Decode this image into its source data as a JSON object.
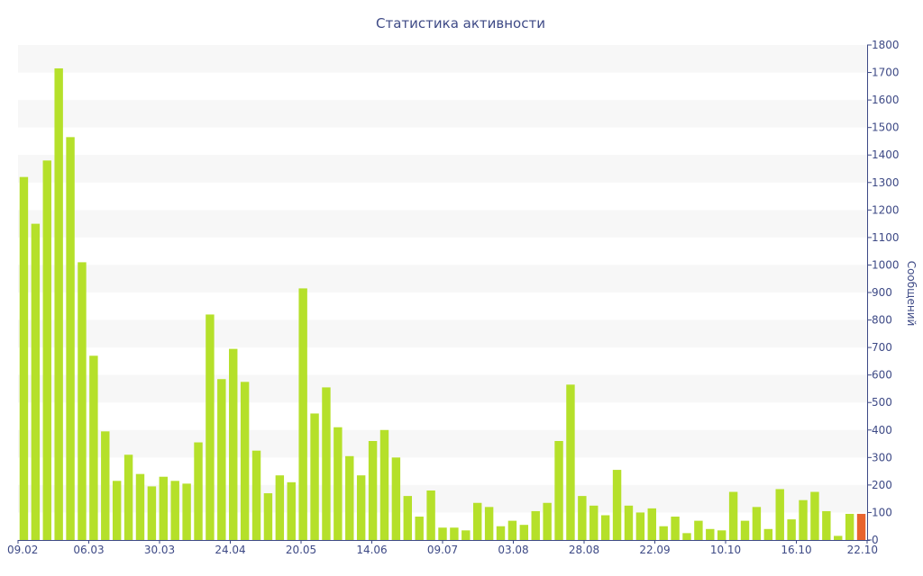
{
  "chart_data": {
    "type": "bar",
    "title": "Статистика активности",
    "xlabel": "",
    "ylabel": "Сообщений",
    "ylim": [
      0,
      1800
    ],
    "y_ticks": [
      0,
      100,
      200,
      300,
      400,
      500,
      600,
      700,
      800,
      900,
      1000,
      1100,
      1200,
      1300,
      1400,
      1500,
      1600,
      1700,
      1800
    ],
    "y_axis_side": "right",
    "x_tick_labels": [
      "09.02",
      "06.03",
      "30.03",
      "24.04",
      "20.05",
      "14.06",
      "09.07",
      "03.08",
      "28.08",
      "22.09",
      "10.10",
      "16.10",
      "22.10"
    ],
    "grid": "alternating horizontal bands",
    "colors": {
      "bar": "#b5e02a",
      "highlight": "#e8642e",
      "text": "#3e4a86",
      "band": "#f7f7f7"
    },
    "values": [
      1320,
      1150,
      1380,
      1715,
      1465,
      1010,
      670,
      395,
      215,
      310,
      240,
      195,
      230,
      215,
      205,
      355,
      820,
      585,
      695,
      575,
      325,
      170,
      235,
      210,
      915,
      460,
      555,
      410,
      305,
      235,
      360,
      400,
      300,
      160,
      85,
      180,
      45,
      45,
      35,
      135,
      120,
      50,
      70,
      55,
      105,
      135,
      360,
      565,
      160,
      125,
      90,
      255,
      125,
      100,
      115,
      50,
      85,
      25,
      70,
      40,
      35,
      175,
      70,
      120,
      40,
      185,
      75,
      145,
      175,
      105,
      15,
      95,
      95
    ],
    "highlight_index": 72
  }
}
